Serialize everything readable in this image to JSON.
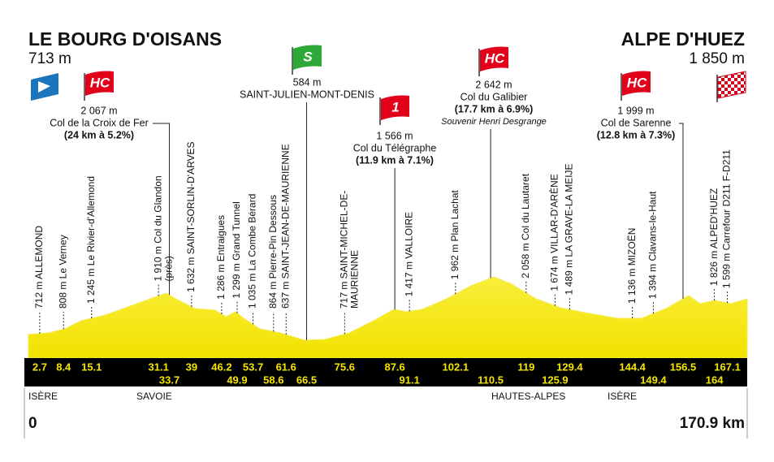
{
  "header": {
    "start": {
      "name": "LE BOURG D'OISANS",
      "altitude": "713 m"
    },
    "finish": {
      "name": "ALPE D'HUEZ",
      "altitude": "1 850 m"
    }
  },
  "waypoints": [
    {
      "km": 2.7,
      "label": [
        "712 m ALLEMOND"
      ]
    },
    {
      "km": 8.4,
      "label": [
        "808 m Le Verney"
      ]
    },
    {
      "km": 15.1,
      "label": [
        "1 245 m Le Rivier-d'Allemond"
      ]
    },
    {
      "km": 31.1,
      "label": [
        "1 910 m Col du Glandon",
        "(près)"
      ]
    },
    {
      "km": 33.7,
      "climb": {
        "category": "HC",
        "color": "#e3001b",
        "lines": [
          "2 067 m",
          "Col de la Croix de Fer",
          "(24 km à 5.2%)"
        ]
      }
    },
    {
      "km": 39,
      "label": [
        "1 632 m SAINT-SORLIN-D'ARVES"
      ]
    },
    {
      "km": 46.2,
      "label": [
        "1 286 m Entraigues"
      ]
    },
    {
      "km": 49.9,
      "label": [
        "1 299 m Grand Tunnel"
      ]
    },
    {
      "km": 53.7,
      "label": [
        "1 035 m La Combe Bérard"
      ]
    },
    {
      "km": 58.6,
      "label": [
        "864 m Pierre-Pin Dessous"
      ]
    },
    {
      "km": 61.6,
      "label": [
        "637 m SAINT-JEAN-DE-MAURIENNE"
      ]
    },
    {
      "km": 66.5,
      "climb": {
        "category": "S",
        "color": "#2ea836",
        "lines": [
          "584 m",
          "SAINT-JULIEN-MONT-DENIS"
        ]
      }
    },
    {
      "km": 75.6,
      "label": [
        "717 m SAINT-MICHEL-DE-",
        "MAURIENNE"
      ]
    },
    {
      "km": 87.6,
      "climb": {
        "category": "1",
        "color": "#e3001b",
        "lines": [
          "1 566 m",
          "Col du Télégraphe",
          "(11.9 km à 7.1%)"
        ]
      }
    },
    {
      "km": 91.1,
      "label": [
        "1 417 m VALLOIRE"
      ]
    },
    {
      "km": 102.1,
      "label": [
        "1 962 m Plan Lachat"
      ]
    },
    {
      "km": 110.5,
      "climb": {
        "category": "HC",
        "color": "#e3001b",
        "lines": [
          "2 642 m",
          "Col du Galibier",
          "(17.7 km à 6.9%)",
          "Souvenir Henri Desgrange"
        ]
      }
    },
    {
      "km": 119,
      "label": [
        "2 058 m Col du Lautaret"
      ]
    },
    {
      "km": 125.9,
      "label": [
        "1 674 m VILLAR-D'ARÈNE"
      ]
    },
    {
      "km": 129.4,
      "label": [
        "1 489 m LA GRAVE-LA MEIJE"
      ]
    },
    {
      "km": 144.4,
      "label": [
        "1 136 m MIZOËN"
      ]
    },
    {
      "km": 149.4,
      "label": [
        "1 394 m Clavans-le-Haut"
      ]
    },
    {
      "km": 156.5,
      "climb": {
        "category": "HC",
        "color": "#e3001b",
        "lines": [
          "1 999 m",
          "Col de Sarenne",
          "(12.8 km à 7.3%)"
        ]
      }
    },
    {
      "km": 164,
      "label": [
        "1 826 m ALPED'HUEZ"
      ]
    },
    {
      "km": 167.1,
      "label": [
        "1 599 m Carrefour D211 F-D211"
      ]
    }
  ],
  "regions": [
    "ISÈRE",
    "SAVOIE",
    "HAUTES-ALPES",
    "ISÈRE"
  ],
  "distance": {
    "start": "0",
    "end": "170.9 km"
  }
}
